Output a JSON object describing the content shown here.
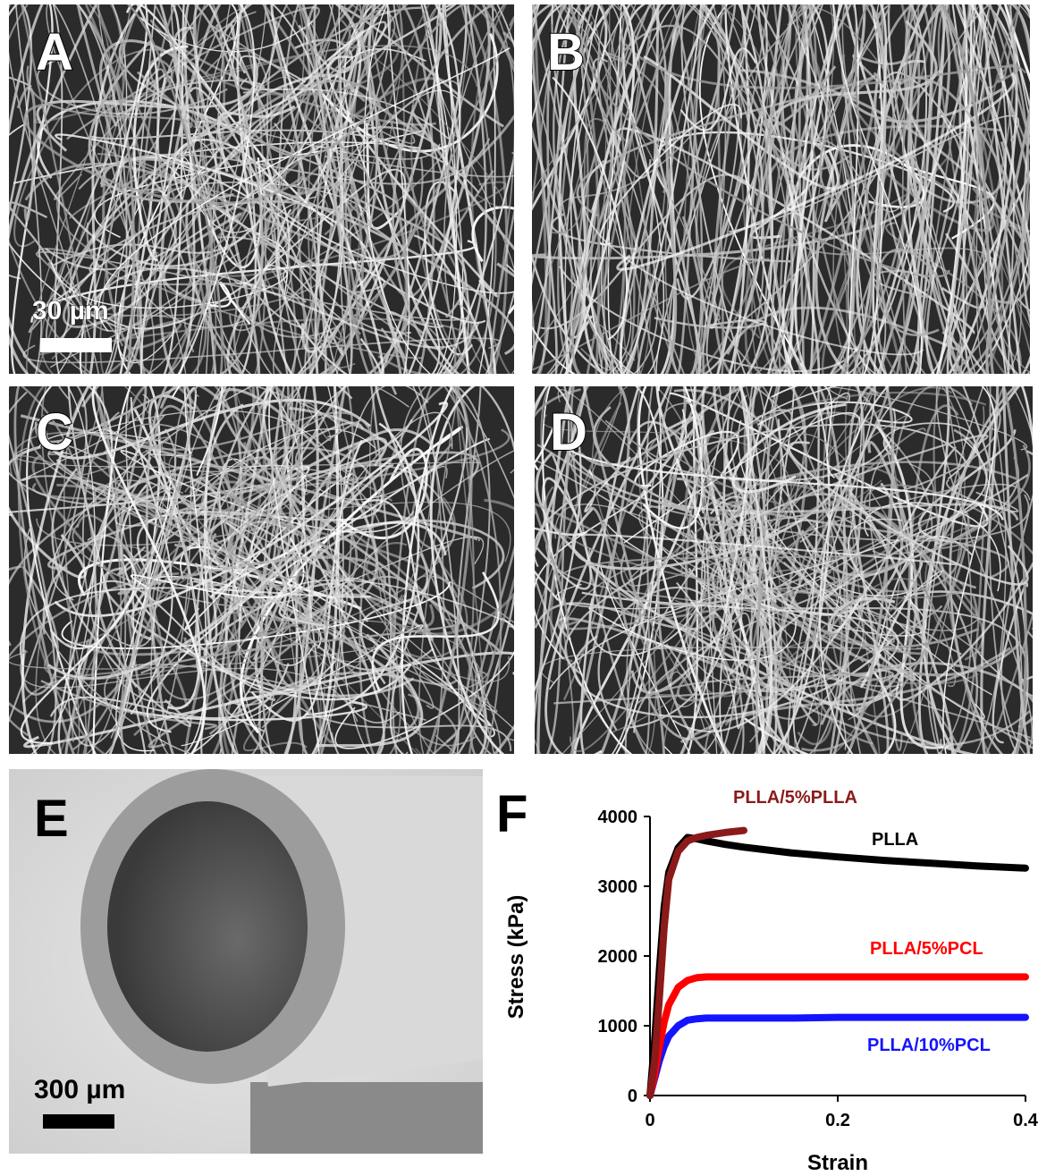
{
  "panels": [
    {
      "label": "A",
      "scale": "30 µm"
    },
    {
      "label": "B"
    },
    {
      "label": "C"
    },
    {
      "label": "D"
    },
    {
      "label": "E",
      "scale": "300 µm"
    },
    {
      "label": "F"
    }
  ],
  "chart_data": {
    "type": "line",
    "xlabel": "Strain",
    "ylabel": "Stress (kPa)",
    "x": [
      0,
      0.005,
      0.01,
      0.015,
      0.02,
      0.03,
      0.04,
      0.05,
      0.06,
      0.08,
      0.1,
      0.15,
      0.2,
      0.25,
      0.3,
      0.35,
      0.4
    ],
    "series": [
      {
        "name": "PLLA",
        "color": "#000000",
        "values": [
          0,
          800,
          1800,
          2700,
          3200,
          3550,
          3700,
          3680,
          3650,
          3600,
          3560,
          3480,
          3420,
          3370,
          3330,
          3290,
          3260
        ]
      },
      {
        "name": "PLLA/5%PLLA",
        "color": "#8b1a1a",
        "values": [
          0,
          500,
          1400,
          2400,
          3100,
          3500,
          3650,
          3700,
          3730,
          3770,
          3800,
          null,
          null,
          null,
          null,
          null,
          null
        ]
      },
      {
        "name": "PLLA/5%PCL",
        "color": "#ff0000",
        "values": [
          0,
          300,
          700,
          1050,
          1300,
          1550,
          1650,
          1690,
          1700,
          1700,
          1700,
          1700,
          1700,
          1700,
          1700,
          1700,
          1700
        ]
      },
      {
        "name": "PLLA/10%PCL",
        "color": "#1414ff",
        "values": [
          0,
          250,
          500,
          700,
          850,
          1000,
          1080,
          1100,
          1110,
          1110,
          1110,
          1110,
          1120,
          1120,
          1120,
          1120,
          1120
        ]
      }
    ],
    "xlim": [
      0,
      0.4
    ],
    "ylim": [
      0,
      4000
    ],
    "xticks": [
      0,
      0.2,
      0.4
    ],
    "yticks": [
      0,
      1000,
      2000,
      3000,
      4000
    ]
  }
}
